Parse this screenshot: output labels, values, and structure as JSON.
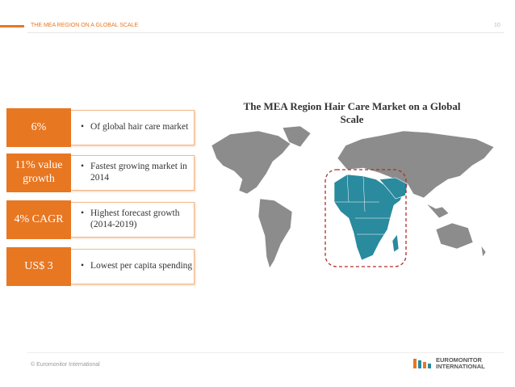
{
  "header": {
    "title": "THE MEA REGION ON A GLOBAL SCALE",
    "page": "10"
  },
  "stats": [
    {
      "label": "6%",
      "text": "Of global hair care market"
    },
    {
      "label": "11% value growth",
      "text": "Fastest growing market in 2014"
    },
    {
      "label": "4% CAGR",
      "text": "Highest forecast growth (2014-2019)"
    },
    {
      "label": "US$ 3",
      "text": "Lowest per capita spending"
    }
  ],
  "map": {
    "title": "The MEA Region Hair Care Market on a Global Scale"
  },
  "footer": {
    "copyright": "© Euromonitor International",
    "logo_top": "EUROMONITOR",
    "logo_bottom": "INTERNATIONAL"
  }
}
